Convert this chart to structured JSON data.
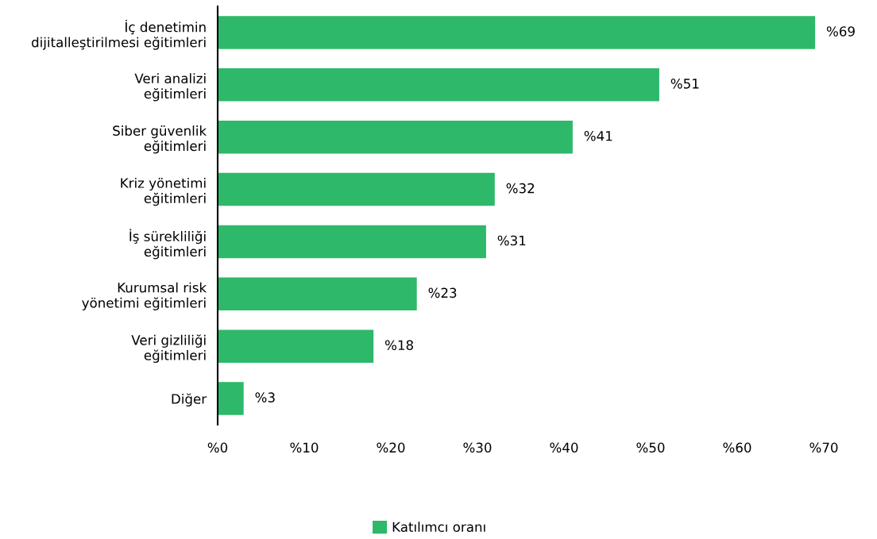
{
  "chart_data": {
    "type": "bar",
    "orientation": "horizontal",
    "categories": [
      "İç denetimin\ndijitalleştirilmesi eğitimleri",
      "Veri analizi\neğitimleri",
      "Siber güvenlik\neğitimleri",
      "Kriz yönetimi\neğitimleri",
      "İş sürekliliği\neğitimleri",
      "Kurumsal risk\nyönetimi eğitimleri",
      "Veri gizliliği\neğitimleri",
      "Diğer"
    ],
    "series": [
      {
        "name": "Katılımcı oranı",
        "color": "#2db86a",
        "values": [
          69,
          51,
          41,
          32,
          31,
          23,
          18,
          3
        ],
        "value_labels": [
          "%69",
          "%51",
          "%41",
          "%32",
          "%31",
          "%23",
          "%18",
          "%3"
        ]
      }
    ],
    "xlim": [
      0,
      70
    ],
    "xticks": [
      {
        "value": 0,
        "label": "%0"
      },
      {
        "value": 10,
        "label": "%10"
      },
      {
        "value": 20,
        "label": "%20"
      },
      {
        "value": 30,
        "label": "%30"
      },
      {
        "value": 40,
        "label": "%40"
      },
      {
        "value": 50,
        "label": "%50"
      },
      {
        "value": 60,
        "label": "%60"
      },
      {
        "value": 70,
        "label": "%70"
      }
    ],
    "grid": false,
    "legend": "bottom"
  }
}
